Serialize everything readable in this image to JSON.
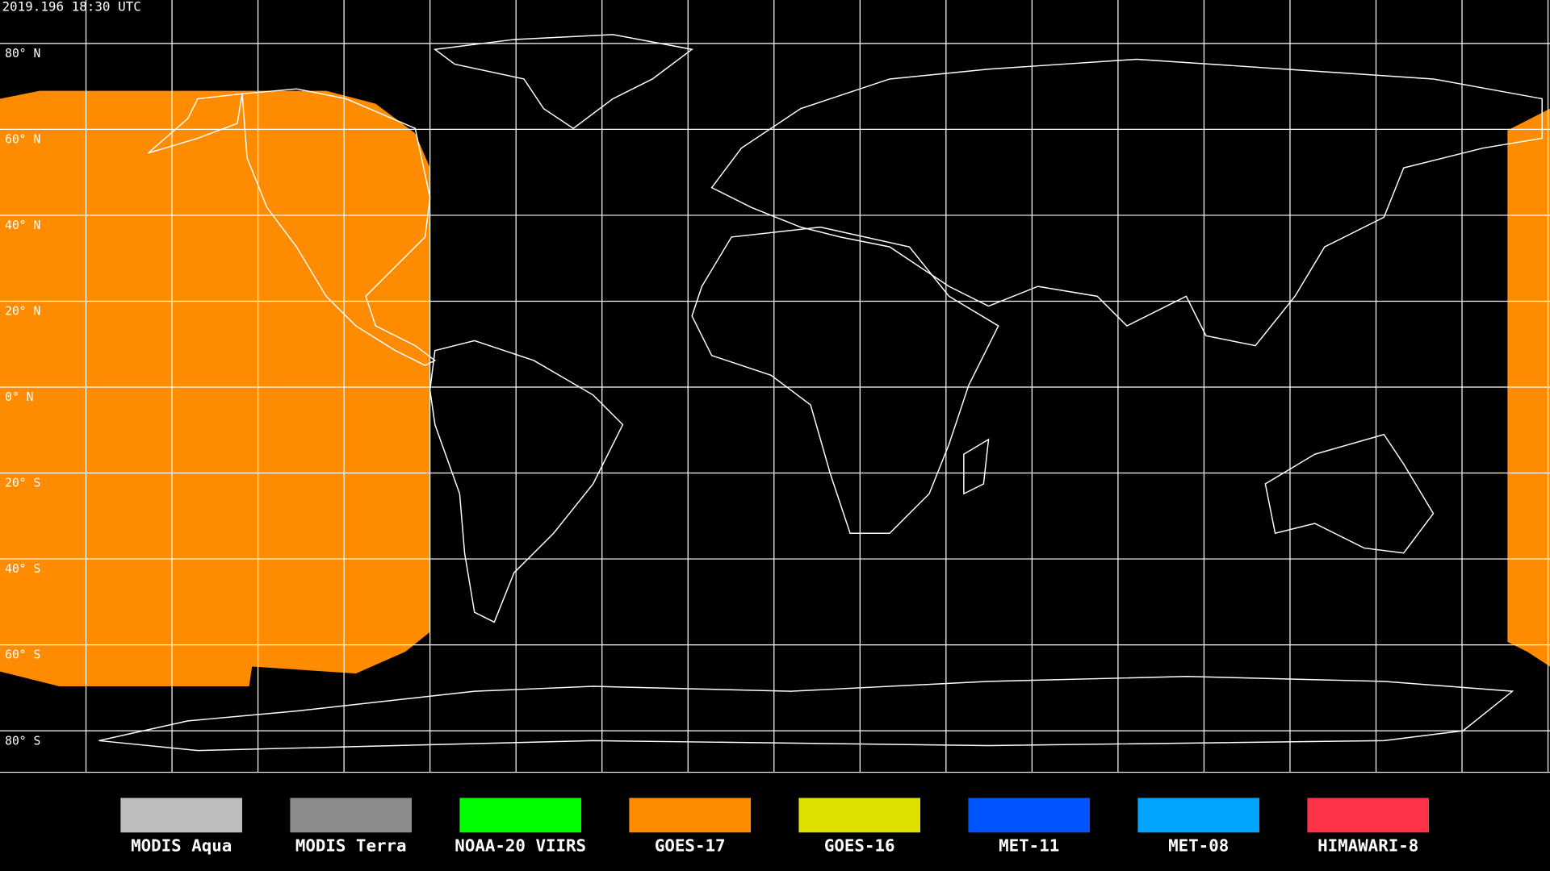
{
  "timestamp": "2019.196 18:30 UTC",
  "latitude_labels": [
    "80° N",
    "60° N",
    "40° N",
    "20° N",
    "0° N",
    "20° S",
    "40° S",
    "60° S",
    "80° S"
  ],
  "legend": [
    {
      "name": "MODIS Aqua",
      "color": "#bdbdbd"
    },
    {
      "name": "MODIS Terra",
      "color": "#8c8c8c"
    },
    {
      "name": "NOAA-20 VIIRS",
      "color": "#00ff00"
    },
    {
      "name": "GOES-17",
      "color": "#ff8c00"
    },
    {
      "name": "GOES-16",
      "color": "#e0e000"
    },
    {
      "name": "MET-11",
      "color": "#0055ff"
    },
    {
      "name": "MET-08",
      "color": "#00a5ff"
    },
    {
      "name": "HIMAWARI-8",
      "color": "#ff3347"
    }
  ]
}
